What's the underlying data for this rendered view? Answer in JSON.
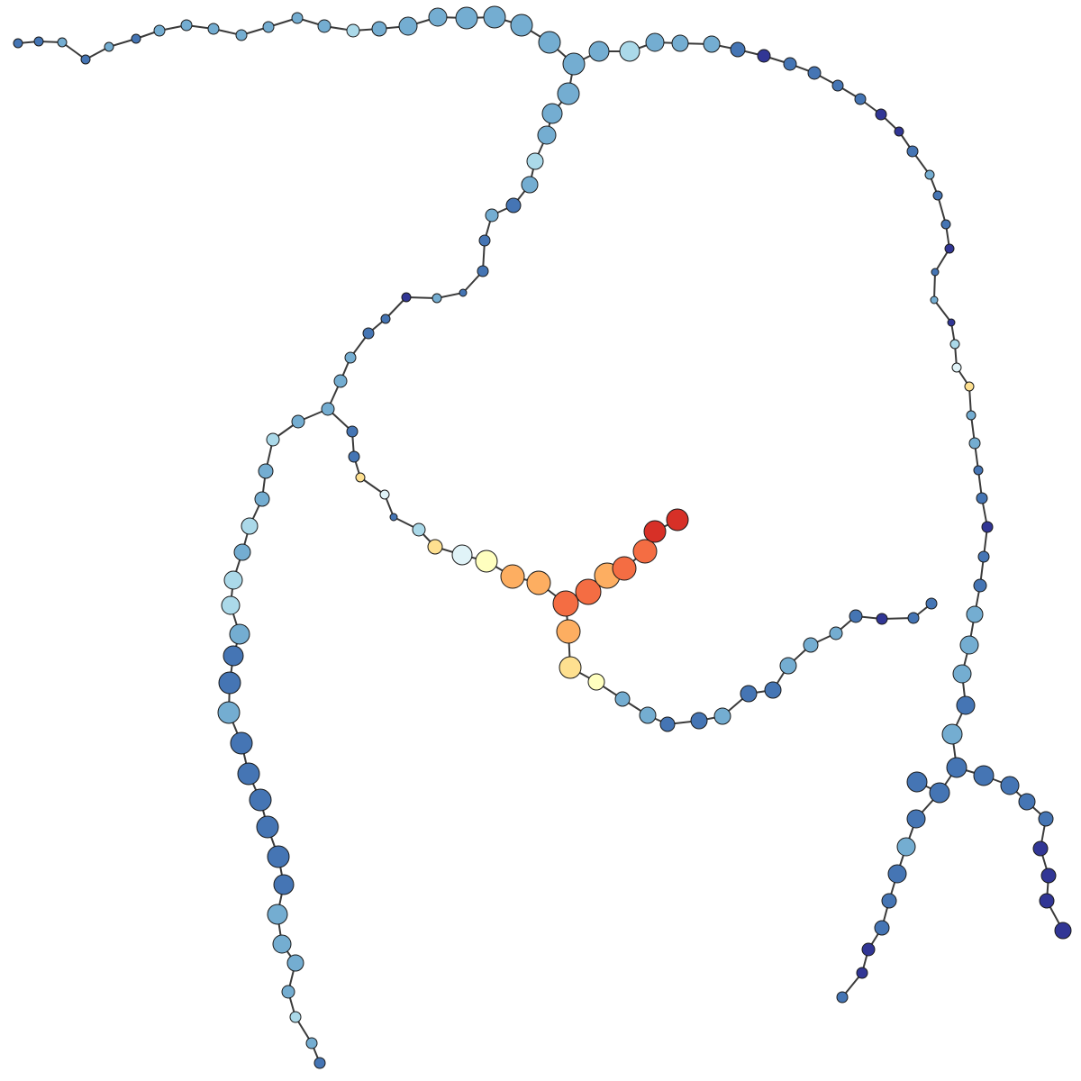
{
  "diagram": {
    "type": "node-link-graph",
    "node_color_scale": {
      "palette": [
        "#313695",
        "#4575b4",
        "#74add1",
        "#abd9e9",
        "#e0f3f8",
        "#ffffbf",
        "#fee090",
        "#fdae61",
        "#f46d43",
        "#d73027"
      ]
    },
    "edge_color": "#3a3a3a",
    "background": "#ffffff"
  }
}
